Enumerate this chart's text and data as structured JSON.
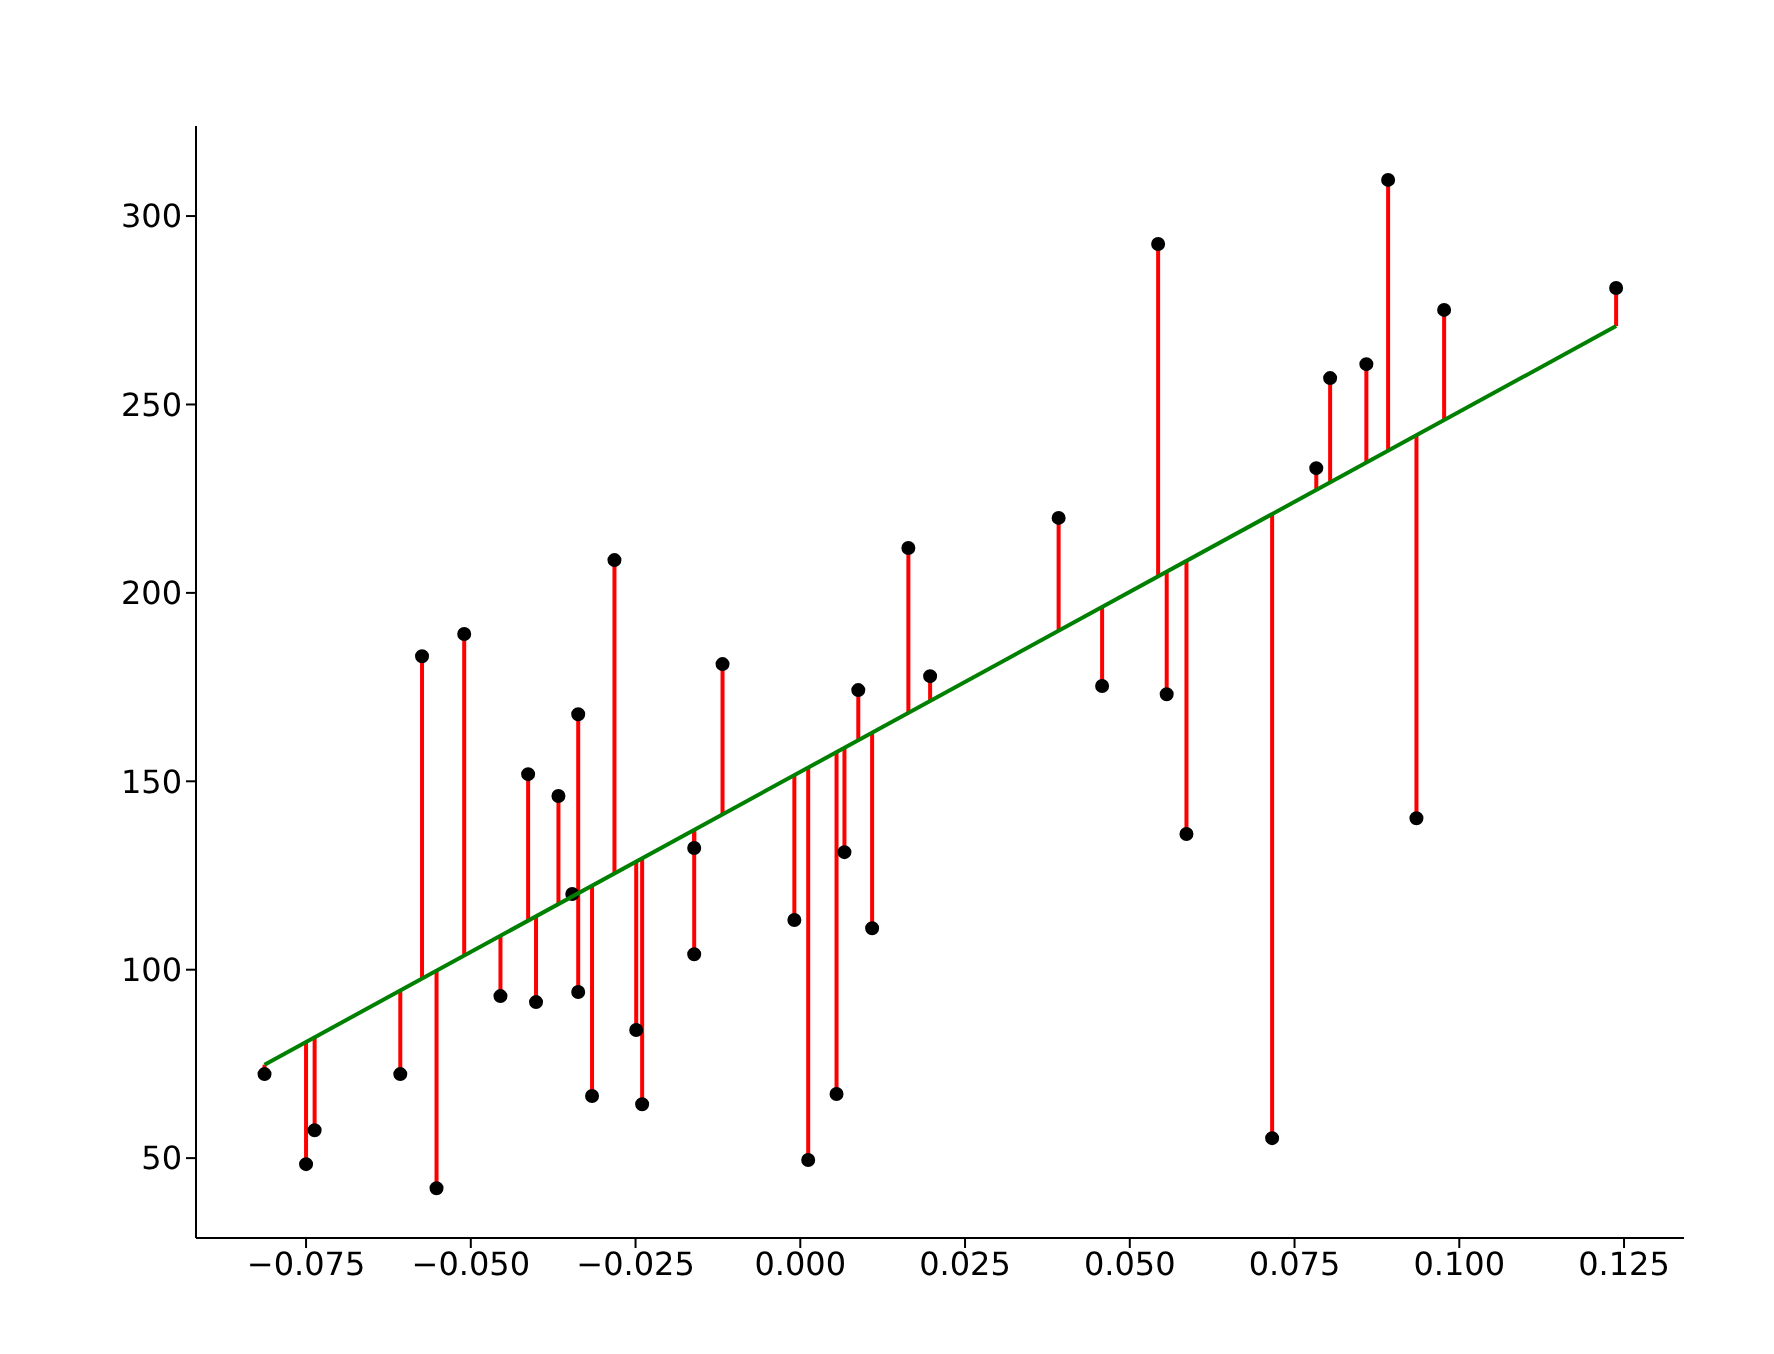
{
  "chart_data": {
    "type": "scatter",
    "xlim": [
      -0.0917,
      0.1341
    ],
    "ylim": [
      28.8,
      323.9
    ],
    "xticks": [
      {
        "value": -0.075,
        "label": "−0.075"
      },
      {
        "value": -0.05,
        "label": "−0.050"
      },
      {
        "value": -0.025,
        "label": "−0.025"
      },
      {
        "value": 0,
        "label": "0.000"
      },
      {
        "value": 0.025,
        "label": "0.025"
      },
      {
        "value": 0.05,
        "label": "0.050"
      },
      {
        "value": 0.075,
        "label": "0.075"
      },
      {
        "value": 0.1,
        "label": "0.100"
      },
      {
        "value": 0.125,
        "label": "0.125"
      }
    ],
    "yticks": [
      50,
      100,
      150,
      200,
      250,
      300
    ],
    "marker": "circle",
    "series": [
      {
        "color": "#000000",
        "x": [
          -0.0813,
          -0.075,
          -0.0737,
          -0.0607,
          -0.0574,
          -0.0552,
          -0.051,
          -0.0455,
          -0.0413,
          -0.0401,
          -0.0367,
          -0.0346,
          -0.0337,
          -0.0337,
          -0.0316,
          -0.0282,
          -0.0249,
          -0.024,
          -0.0161,
          -0.0161,
          -0.0118,
          -0.0009,
          0.0012,
          0.0055,
          0.0067,
          0.0088,
          0.0109,
          0.0164,
          0.0197,
          0.0392,
          0.0458,
          0.0543,
          0.0556,
          0.0586,
          0.0716,
          0.0783,
          0.0804,
          0.0859,
          0.0892,
          0.0935,
          0.0977,
          0.1238
        ],
        "values": [
          72.3,
          48.4,
          57.4,
          72.3,
          183.2,
          42.0,
          189.1,
          93.0,
          151.9,
          91.4,
          146.1,
          120.1,
          167.8,
          94.1,
          66.5,
          208.7,
          84.0,
          64.3,
          132.3,
          104.1,
          181.1,
          113.2,
          49.5,
          67.0,
          131.2,
          174.2,
          111.0,
          211.9,
          177.9,
          219.9,
          175.3,
          292.6,
          173.1,
          136.0,
          55.3,
          233.1,
          257.0,
          260.7,
          309.6,
          140.2,
          275.1,
          280.9
        ],
        "errors": [
          [
            72.3,
            74.8
          ],
          [
            48.4,
            80.8
          ],
          [
            57.4,
            82.1
          ],
          [
            72.3,
            94.5
          ],
          [
            97.6,
            183.2
          ],
          [
            42.0,
            99.7
          ],
          [
            103.8,
            189.1
          ],
          [
            93.0,
            109.0
          ],
          [
            113.0,
            151.9
          ],
          [
            91.4,
            114.2
          ],
          [
            117.4,
            146.1
          ],
          null,
          [
            120.3,
            167.8
          ],
          [
            94.1,
            120.3
          ],
          [
            66.5,
            122.3
          ],
          [
            125.5,
            208.7
          ],
          [
            84.0,
            128.7
          ],
          [
            64.3,
            129.6
          ],
          [
            132.3,
            137.1
          ],
          [
            104.1,
            137.1
          ],
          [
            141.2,
            181.1
          ],
          [
            113.2,
            151.6
          ],
          [
            49.5,
            153.6
          ],
          [
            67.0,
            157.8
          ],
          [
            131.2,
            158.9
          ],
          [
            160.9,
            174.2
          ],
          [
            111.0,
            162.9
          ],
          [
            168.2,
            211.9
          ],
          [
            171.3,
            177.9
          ],
          [
            190.0,
            219.9
          ],
          [
            175.3,
            196.3
          ],
          [
            204.4,
            292.6
          ],
          [
            173.1,
            205.6
          ],
          [
            136.0,
            208.5
          ],
          [
            55.3,
            220.9
          ],
          [
            227.3,
            233.1
          ],
          [
            229.3,
            257.0
          ],
          [
            234.6,
            260.7
          ],
          [
            237.7,
            309.6
          ],
          [
            140.2,
            241.9
          ],
          [
            245.9,
            275.1
          ],
          [
            270.8,
            280.9
          ]
        ]
      },
      {
        "type": "line",
        "color": "#008000",
        "marker": "none",
        "x": [
          -0.0813,
          0.1238
        ],
        "values": [
          74.8,
          270.8
        ]
      }
    ]
  }
}
